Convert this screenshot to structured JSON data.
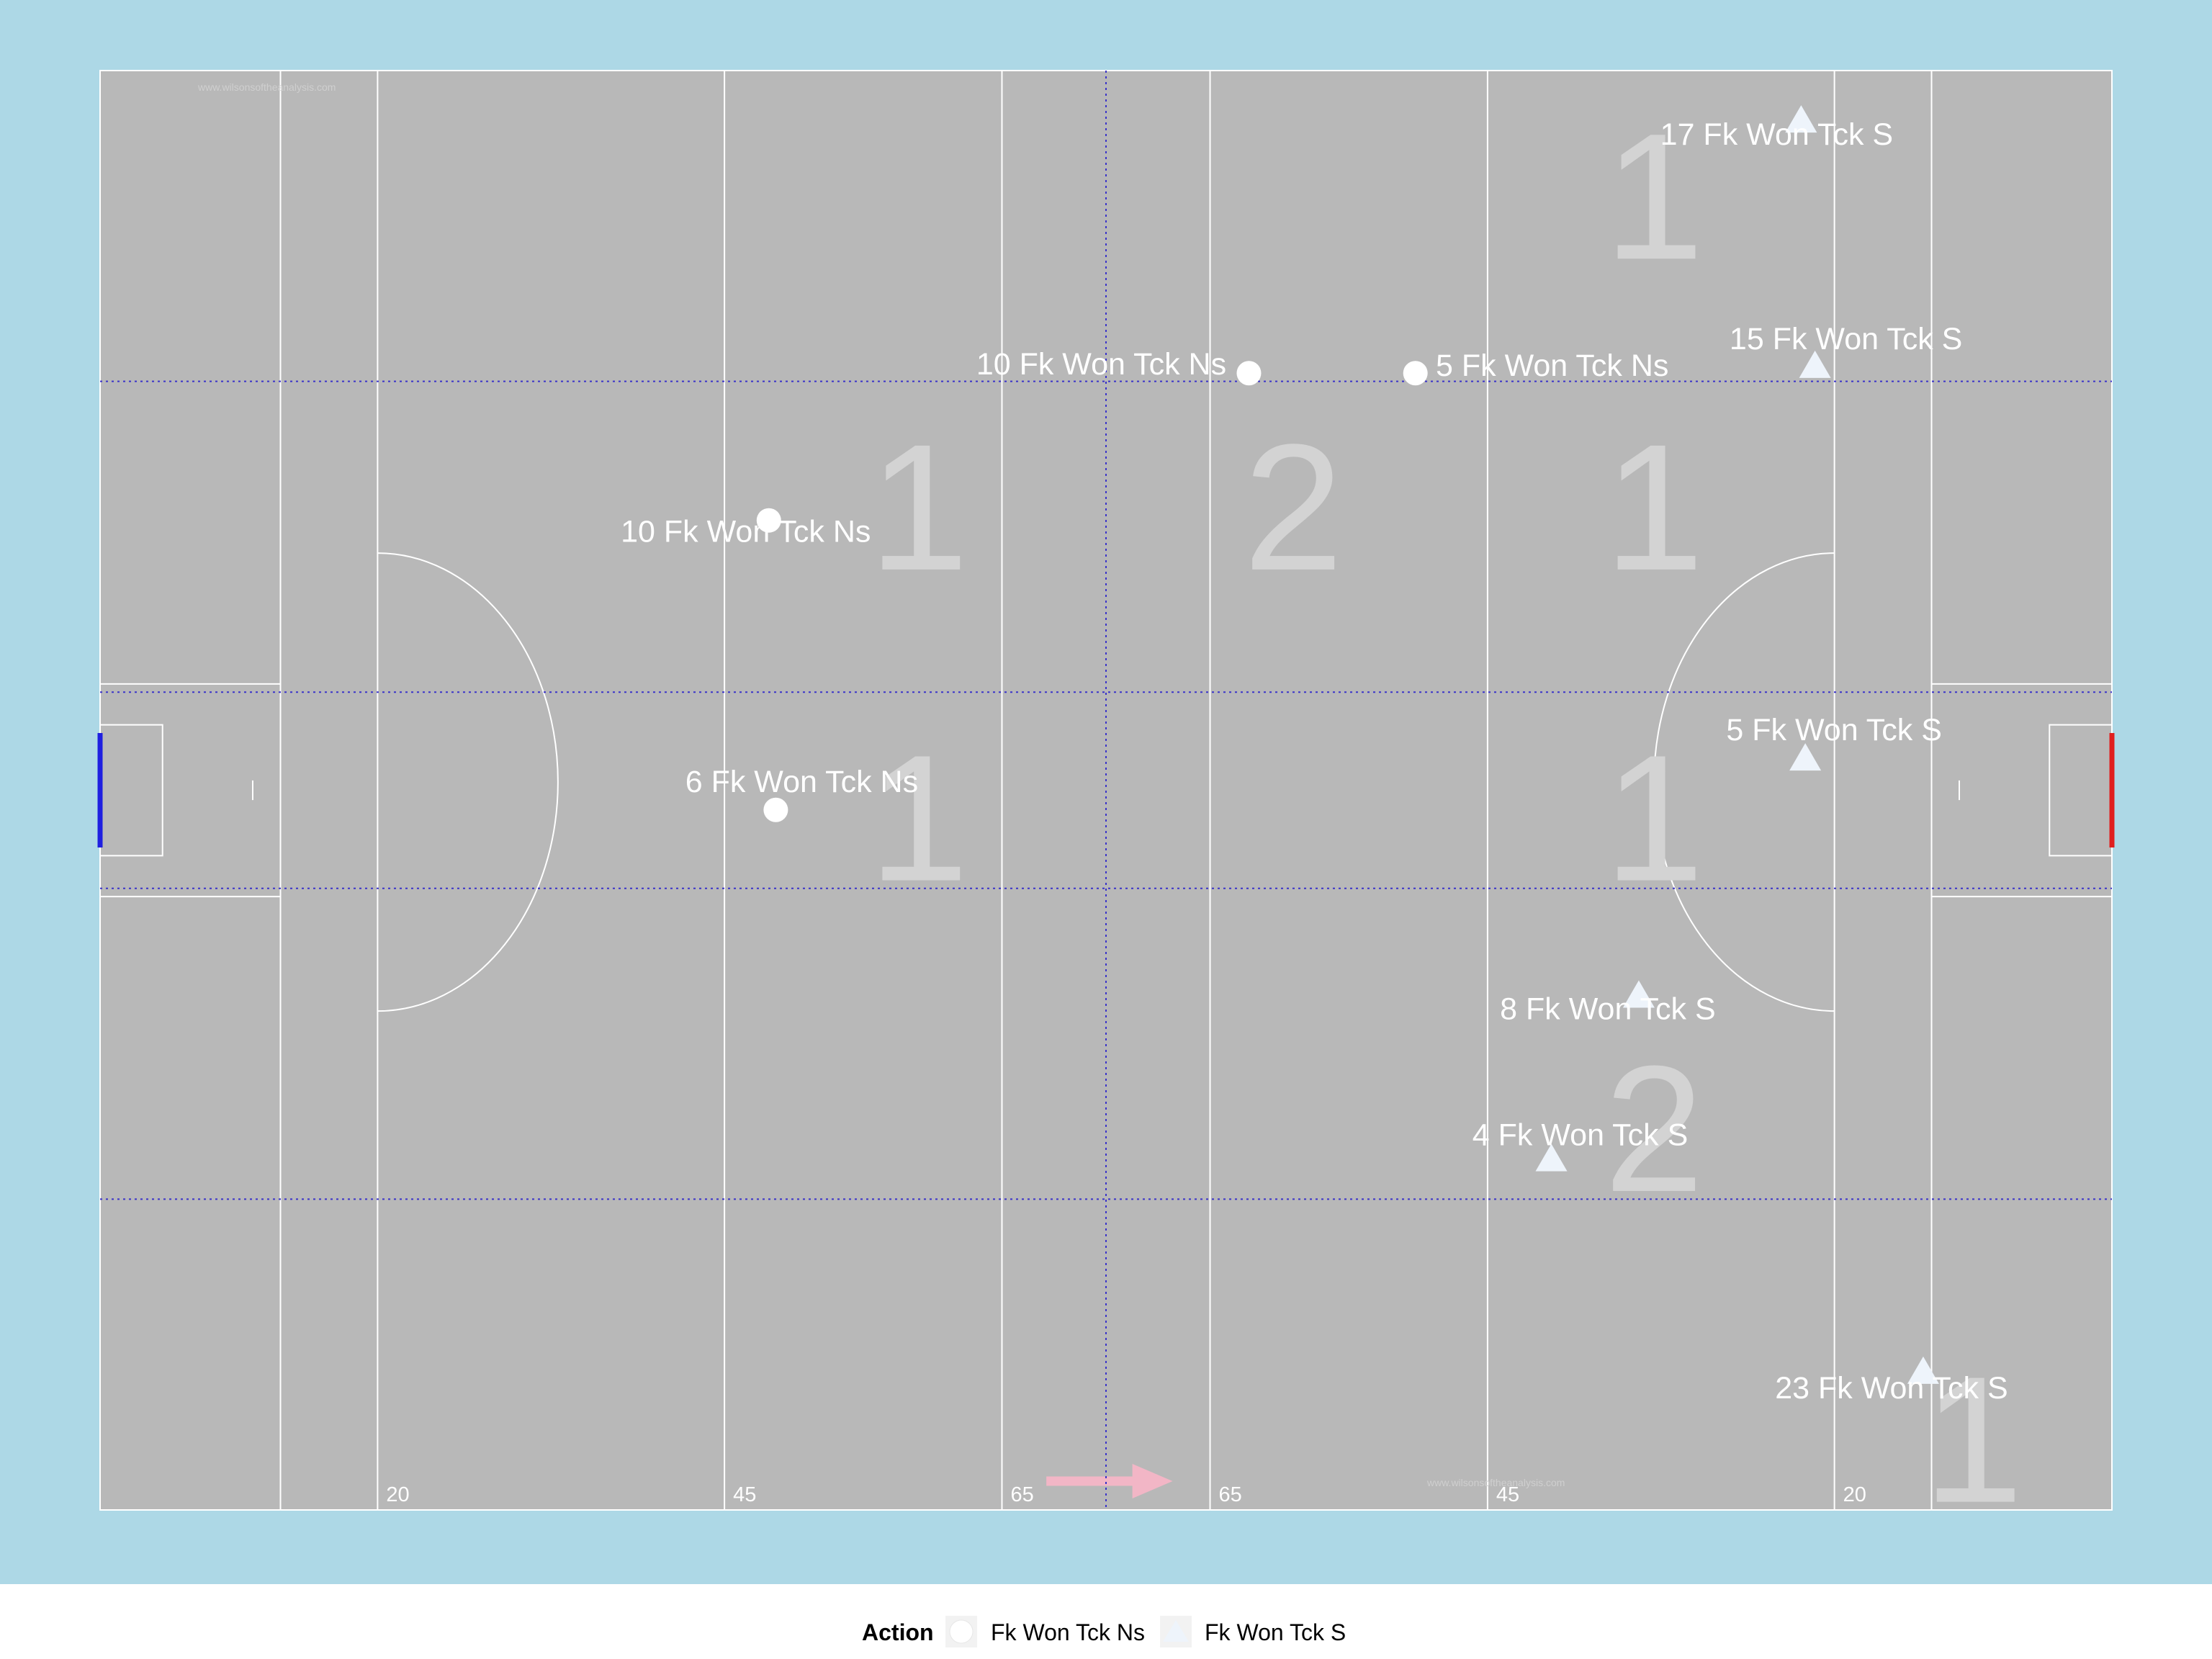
{
  "colors": {
    "background": "#add8e6",
    "pitch": "#b8b8b8",
    "lines": "#ffffff",
    "zone_lines": "#3a33c9",
    "home_goal": "#1f1fe0",
    "away_goal": "#e01f1f",
    "direction_arrow": "#f2b6c6",
    "zone_numbers": "#d3d3d3",
    "marker_ns": "#ffffff",
    "marker_s": "#eef4fb"
  },
  "watermark": "www.wilsonsoftheanalysis.com",
  "chart_data": {
    "type": "scatter",
    "title": "",
    "xlabel": "",
    "ylabel": "",
    "xlim": [
      0,
      145
    ],
    "ylim": [
      0,
      88
    ],
    "grid": false,
    "direction": "left-to-right",
    "line_labels": [
      {
        "x": 20,
        "label": "20"
      },
      {
        "x": 45,
        "label": "45"
      },
      {
        "x": 65,
        "label": "65"
      },
      {
        "x": 80,
        "label": "65"
      },
      {
        "x": 100,
        "label": "45"
      },
      {
        "x": 125,
        "label": "20"
      }
    ],
    "series": [
      {
        "name": "Fk Won Tck Ns",
        "marker": "circle",
        "points": [
          {
            "x": 48.2,
            "y": 60.5,
            "label": "10 Fk Won Tck Ns"
          },
          {
            "x": 48.7,
            "y": 42.8,
            "label": "6 Fk Won Tck Ns"
          },
          {
            "x": 82.8,
            "y": 69.5,
            "label": "10 Fk Won Tck Ns"
          },
          {
            "x": 94.8,
            "y": 69.5,
            "label": "5 Fk Won Tck Ns"
          }
        ]
      },
      {
        "name": "Fk Won Tck S",
        "marker": "triangle",
        "points": [
          {
            "x": 122.6,
            "y": 85.0,
            "label": "17 Fk Won Tck S"
          },
          {
            "x": 123.6,
            "y": 70.0,
            "label": "15 Fk Won Tck S"
          },
          {
            "x": 122.9,
            "y": 46.0,
            "label": "5 Fk Won Tck S"
          },
          {
            "x": 110.9,
            "y": 31.5,
            "label": "8 Fk Won Tck S"
          },
          {
            "x": 104.6,
            "y": 21.5,
            "label": "4 Fk Won Tck S"
          },
          {
            "x": 131.4,
            "y": 8.5,
            "label": "23 Fk Won Tck S"
          }
        ]
      }
    ],
    "zone_counts": [
      {
        "x": 59,
        "y": 57.5,
        "label": "1"
      },
      {
        "x": 86,
        "y": 57.5,
        "label": "2"
      },
      {
        "x": 112,
        "y": 57.5,
        "label": "1"
      },
      {
        "x": 112,
        "y": 76.5,
        "label": "1"
      },
      {
        "x": 59,
        "y": 38.5,
        "label": "1"
      },
      {
        "x": 112,
        "y": 38.5,
        "label": "1"
      },
      {
        "x": 112,
        "y": 19.5,
        "label": "2"
      },
      {
        "x": 135,
        "y": 0.5,
        "label": "1"
      }
    ],
    "legend": {
      "title": "Action",
      "position": "bottom",
      "entries": [
        "Fk Won Tck Ns",
        "Fk Won Tck S"
      ]
    }
  }
}
